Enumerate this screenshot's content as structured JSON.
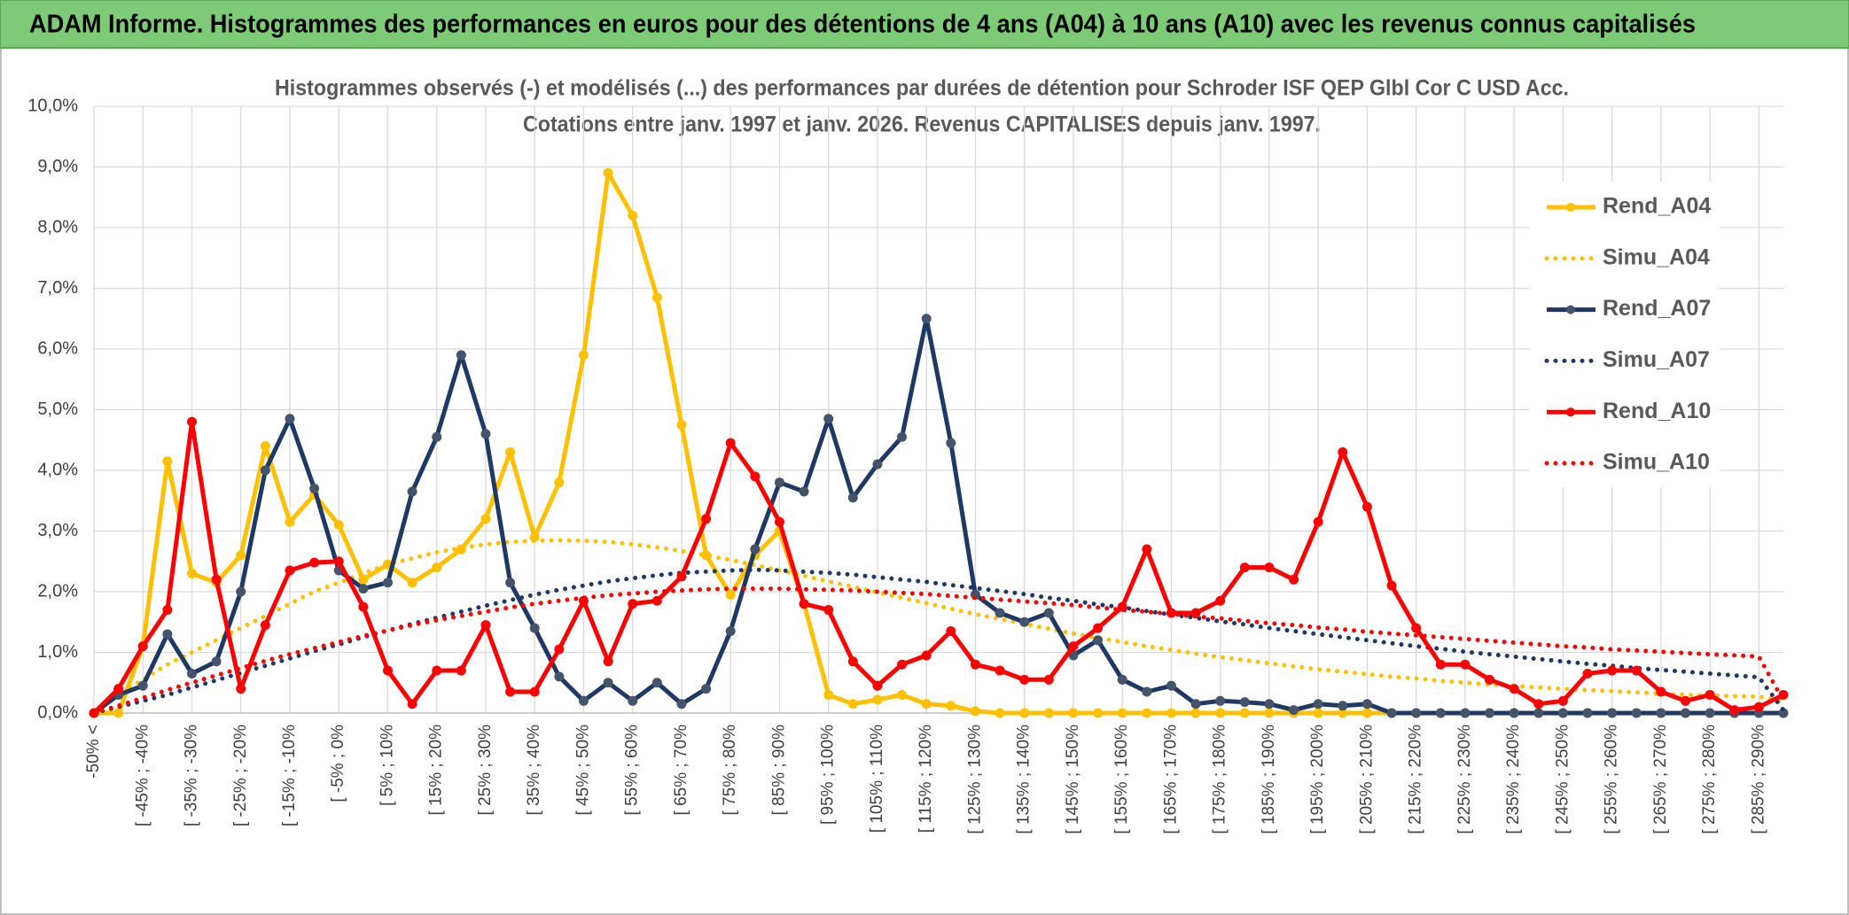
{
  "chart_data": {
    "type": "line",
    "header": "ADAM Informe. Histogrammes des performances en euros pour des détentions de 4 ans (A04) à 10 ans (A10) avec les revenus connus capitalisés",
    "title": "Histogrammes observés (-) et modélisés (...) des performances par durées de détention pour Schroder ISF QEP Glbl Cor C USD Acc.",
    "subtitle": "Cotations entre janv. 1997 et janv. 2026. Revenus CAPITALISES depuis janv. 1997.",
    "categories": [
      "-50% <",
      null,
      "[ -45% ; -40%",
      null,
      "[ -35% ; -30%",
      null,
      "[ -25% ; -20%",
      null,
      "[ -15% ; -10%",
      null,
      "[ -5% ; 0%",
      null,
      "[ 5% ; 10%",
      null,
      "[ 15% ; 20%",
      null,
      "[ 25% ; 30%",
      null,
      "[ 35% ; 40%",
      null,
      "[ 45% ; 50%",
      null,
      "[ 55% ; 60%",
      null,
      "[ 65% ; 70%",
      null,
      "[ 75% ; 80%",
      null,
      "[ 85% ; 90%",
      null,
      "[ 95% ; 100%",
      null,
      "[ 105% ; 110%",
      null,
      "[ 115% ; 120%",
      null,
      "[ 125% ; 130%",
      null,
      "[ 135% ; 140%",
      null,
      "[ 145% ; 150%",
      null,
      "[ 155% ; 160%",
      null,
      "[ 165% ; 170%",
      null,
      "[ 175% ; 180%",
      null,
      "[ 185% ; 190%",
      null,
      "[ 195% ; 200%",
      null,
      "[ 205% ; 210%",
      null,
      "[ 215% ; 220%",
      null,
      "[ 225% ; 230%",
      null,
      "[ 235% ; 240%",
      null,
      "[ 245% ; 250%",
      null,
      "[ 255% ; 260%",
      null,
      "[ 265% ; 270%",
      null,
      "[ 275% ; 280%",
      null,
      "[ 285% ; 290%",
      null
    ],
    "ylim": [
      0,
      10
    ],
    "yticks": [
      {
        "value": 0,
        "label": "0,0%"
      },
      {
        "value": 1,
        "label": "1,0%"
      },
      {
        "value": 2,
        "label": "2,0%"
      },
      {
        "value": 3,
        "label": "3,0%"
      },
      {
        "value": 4,
        "label": "4,0%"
      },
      {
        "value": 5,
        "label": "5,0%"
      },
      {
        "value": 6,
        "label": "6,0%"
      },
      {
        "value": 7,
        "label": "7,0%"
      },
      {
        "value": 8,
        "label": "8,0%"
      },
      {
        "value": 9,
        "label": "9,0%"
      },
      {
        "value": 10,
        "label": "10,0%"
      }
    ],
    "grid": true,
    "legend": "right",
    "series": [
      {
        "name": "Rend_A04",
        "color": "#ffc000",
        "marker_color": "#ffc000",
        "dotted": false,
        "markers": true,
        "values": [
          0,
          0,
          1.1,
          4.15,
          2.3,
          2.15,
          2.6,
          4.4,
          3.15,
          3.6,
          3.1,
          2.2,
          2.45,
          2.15,
          2.4,
          2.7,
          3.2,
          4.3,
          2.9,
          3.8,
          5.9,
          8.9,
          8.2,
          6.85,
          4.75,
          2.6,
          1.95,
          2.6,
          3.0,
          1.8,
          0.3,
          0.15,
          0.22,
          0.3,
          0.15,
          0.12,
          0.03,
          0,
          0,
          0,
          0,
          0,
          0,
          0,
          0,
          0,
          0,
          0,
          0,
          0,
          0,
          0,
          0,
          0,
          0,
          0,
          0,
          0,
          0,
          0,
          0,
          0,
          0,
          0,
          0,
          0,
          0,
          0,
          0,
          0
        ]
      },
      {
        "name": "Simu_A04",
        "color": "#ffc000",
        "dotted": true,
        "markers": false,
        "values": [
          0,
          0.3,
          0.55,
          0.8,
          1.0,
          1.2,
          1.4,
          1.6,
          1.8,
          2.0,
          2.15,
          2.3,
          2.45,
          2.55,
          2.65,
          2.72,
          2.78,
          2.82,
          2.84,
          2.85,
          2.84,
          2.82,
          2.78,
          2.73,
          2.67,
          2.6,
          2.52,
          2.44,
          2.35,
          2.26,
          2.17,
          2.08,
          1.99,
          1.9,
          1.81,
          1.72,
          1.63,
          1.55,
          1.47,
          1.39,
          1.31,
          1.24,
          1.17,
          1.1,
          1.04,
          0.98,
          0.92,
          0.87,
          0.82,
          0.77,
          0.72,
          0.68,
          0.64,
          0.6,
          0.57,
          0.53,
          0.5,
          0.47,
          0.45,
          0.42,
          0.4,
          0.38,
          0.36,
          0.34,
          0.32,
          0.3,
          0.29,
          0.28,
          0.27,
          0.2
        ]
      },
      {
        "name": "Rend_A07",
        "color": "#1f3864",
        "marker_color": "#44546a",
        "dotted": false,
        "markers": true,
        "values": [
          0,
          0.3,
          0.45,
          1.3,
          0.65,
          0.85,
          2.0,
          4.0,
          4.85,
          3.7,
          2.35,
          2.05,
          2.15,
          3.65,
          4.55,
          5.9,
          4.6,
          2.15,
          1.4,
          0.6,
          0.2,
          0.5,
          0.2,
          0.5,
          0.15,
          0.4,
          1.35,
          2.7,
          3.8,
          3.65,
          4.85,
          3.55,
          4.1,
          4.55,
          6.5,
          4.45,
          1.95,
          1.65,
          1.5,
          1.65,
          0.95,
          1.2,
          0.55,
          0.35,
          0.45,
          0.15,
          0.2,
          0.18,
          0.15,
          0.05,
          0.15,
          0.12,
          0.15,
          0,
          0,
          0,
          0,
          0,
          0,
          0,
          0,
          0,
          0,
          0,
          0,
          0,
          0,
          0,
          0,
          0
        ]
      },
      {
        "name": "Simu_A07",
        "color": "#1f3864",
        "dotted": true,
        "markers": false,
        "values": [
          0,
          0.1,
          0.2,
          0.3,
          0.42,
          0.54,
          0.66,
          0.78,
          0.9,
          1.02,
          1.13,
          1.25,
          1.36,
          1.47,
          1.57,
          1.67,
          1.77,
          1.86,
          1.95,
          2.03,
          2.1,
          2.17,
          2.22,
          2.27,
          2.31,
          2.33,
          2.35,
          2.36,
          2.35,
          2.33,
          2.31,
          2.28,
          2.24,
          2.2,
          2.16,
          2.11,
          2.06,
          2.01,
          1.96,
          1.9,
          1.85,
          1.79,
          1.74,
          1.68,
          1.62,
          1.57,
          1.51,
          1.46,
          1.4,
          1.35,
          1.3,
          1.25,
          1.2,
          1.15,
          1.1,
          1.06,
          1.01,
          0.97,
          0.93,
          0.89,
          0.85,
          0.81,
          0.78,
          0.74,
          0.71,
          0.68,
          0.65,
          0.62,
          0.59,
          0.05
        ]
      },
      {
        "name": "Rend_A10",
        "color": "#ff0000",
        "marker_color": "#ff0000",
        "dotted": false,
        "markers": true,
        "values": [
          0,
          0.4,
          1.1,
          1.7,
          4.8,
          2.2,
          0.4,
          1.45,
          2.35,
          2.48,
          2.5,
          1.75,
          0.7,
          0.15,
          0.7,
          0.7,
          1.45,
          0.35,
          0.35,
          1.05,
          1.85,
          0.85,
          1.8,
          1.85,
          2.25,
          3.2,
          4.45,
          3.9,
          3.15,
          1.8,
          1.7,
          0.85,
          0.45,
          0.8,
          0.95,
          1.35,
          0.8,
          0.7,
          0.55,
          0.55,
          1.1,
          1.4,
          1.75,
          2.7,
          1.65,
          1.65,
          1.85,
          2.4,
          2.4,
          2.2,
          3.15,
          4.3,
          3.4,
          2.1,
          1.4,
          0.8,
          0.8,
          0.55,
          0.4,
          0.15,
          0.2,
          0.65,
          0.7,
          0.7,
          0.35,
          0.2,
          0.3,
          0.05,
          0.1,
          0.3
        ]
      },
      {
        "name": "Simu_A10",
        "color": "#ff0000",
        "dotted": true,
        "markers": false,
        "values": [
          0,
          0.12,
          0.25,
          0.38,
          0.5,
          0.62,
          0.74,
          0.86,
          0.97,
          1.07,
          1.17,
          1.27,
          1.36,
          1.45,
          1.53,
          1.6,
          1.67,
          1.74,
          1.8,
          1.85,
          1.9,
          1.94,
          1.97,
          2.0,
          2.02,
          2.04,
          2.05,
          2.05,
          2.05,
          2.04,
          2.03,
          2.02,
          2.0,
          1.98,
          1.96,
          1.93,
          1.9,
          1.87,
          1.84,
          1.81,
          1.78,
          1.74,
          1.7,
          1.67,
          1.63,
          1.59,
          1.56,
          1.52,
          1.48,
          1.45,
          1.41,
          1.38,
          1.34,
          1.31,
          1.28,
          1.25,
          1.22,
          1.19,
          1.16,
          1.13,
          1.1,
          1.08,
          1.05,
          1.03,
          1.01,
          0.99,
          0.97,
          0.95,
          0.93,
          0.2
        ]
      }
    ]
  }
}
